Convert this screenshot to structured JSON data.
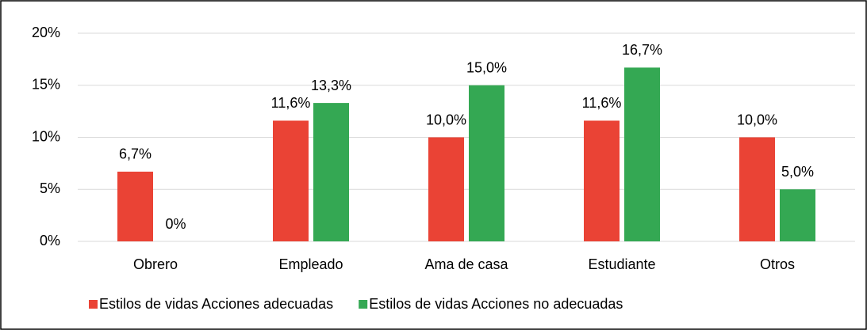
{
  "chart_data": {
    "type": "bar",
    "categories": [
      "Obrero",
      "Empleado",
      "Ama de casa",
      "Estudiante",
      "Otros"
    ],
    "series": [
      {
        "name": "Estilos de vidas Acciones adecuadas",
        "color": "#ea4335",
        "values": [
          6.7,
          11.6,
          10.0,
          11.6,
          10.0
        ],
        "value_labels": [
          "6,7%",
          "11,6%",
          "10,0%",
          "11,6%",
          "10,0%"
        ]
      },
      {
        "name": "Estilos de vidas Acciones no adecuadas",
        "color": "#34a853",
        "values": [
          0,
          13.3,
          15.0,
          16.7,
          5.0
        ],
        "value_labels": [
          "0%",
          "13,3%",
          "15,0%",
          "16,7%",
          "5,0%"
        ]
      }
    ],
    "ylim": [
      0,
      20
    ],
    "yticks": [
      {
        "value": 0,
        "label": "0%"
      },
      {
        "value": 5,
        "label": "5%"
      },
      {
        "value": 10,
        "label": "10%"
      },
      {
        "value": 15,
        "label": "15%"
      },
      {
        "value": 20,
        "label": "20%"
      }
    ],
    "grid": true,
    "legend": "bottom"
  }
}
